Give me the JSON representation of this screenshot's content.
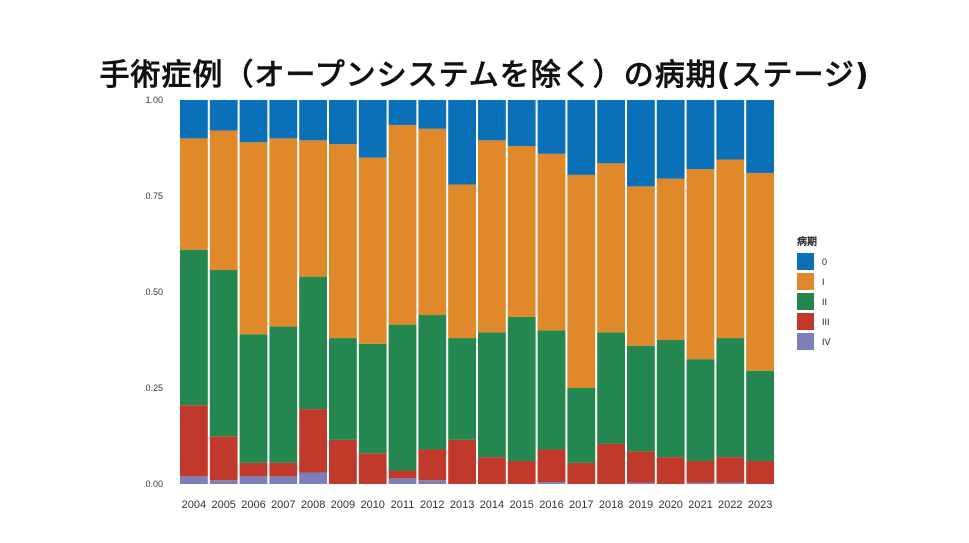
{
  "chart_data": {
    "type": "bar",
    "stacked": true,
    "normalized": true,
    "title": "手術症例（オープンシステムを除く）の病期(ステージ)",
    "xlabel": "",
    "ylabel": "",
    "ylim": [
      0,
      1
    ],
    "yticks": [
      "0.00",
      "0.25",
      "0.50",
      "0.75",
      "1.00"
    ],
    "grid": false,
    "legend_position": "right",
    "legend_title": "病期",
    "categories": [
      "2004",
      "2005",
      "2006",
      "2007",
      "2008",
      "2009",
      "2010",
      "2011",
      "2012",
      "2013",
      "2014",
      "2015",
      "2016",
      "2017",
      "2018",
      "2019",
      "2020",
      "2021",
      "2022",
      "2023"
    ],
    "series": [
      {
        "name": "IV",
        "color": "#7c7fb8",
        "values": [
          0.02,
          0.01,
          0.02,
          0.02,
          0.03,
          0.0,
          0.0,
          0.015,
          0.01,
          0.0,
          0.0,
          0.0,
          0.005,
          0.0,
          0.0,
          0.003,
          0.0,
          0.003,
          0.003,
          0.0
        ]
      },
      {
        "name": "III",
        "color": "#c0392b",
        "values": [
          0.185,
          0.115,
          0.035,
          0.035,
          0.165,
          0.115,
          0.08,
          0.02,
          0.08,
          0.115,
          0.07,
          0.06,
          0.085,
          0.055,
          0.105,
          0.082,
          0.07,
          0.057,
          0.067,
          0.06
        ]
      },
      {
        "name": "II",
        "color": "#23874f",
        "values": [
          0.405,
          0.435,
          0.335,
          0.355,
          0.345,
          0.265,
          0.285,
          0.38,
          0.35,
          0.265,
          0.325,
          0.375,
          0.31,
          0.195,
          0.29,
          0.275,
          0.305,
          0.265,
          0.31,
          0.235
        ]
      },
      {
        "name": "I",
        "color": "#e0892a",
        "values": [
          0.29,
          0.365,
          0.5,
          0.49,
          0.355,
          0.505,
          0.485,
          0.52,
          0.485,
          0.4,
          0.5,
          0.445,
          0.46,
          0.555,
          0.44,
          0.415,
          0.42,
          0.495,
          0.465,
          0.515
        ]
      },
      {
        "name": "0",
        "color": "#0a71b8",
        "values": [
          0.1,
          0.08,
          0.11,
          0.1,
          0.105,
          0.115,
          0.15,
          0.065,
          0.075,
          0.22,
          0.105,
          0.12,
          0.14,
          0.195,
          0.165,
          0.225,
          0.205,
          0.18,
          0.155,
          0.19
        ]
      }
    ]
  }
}
